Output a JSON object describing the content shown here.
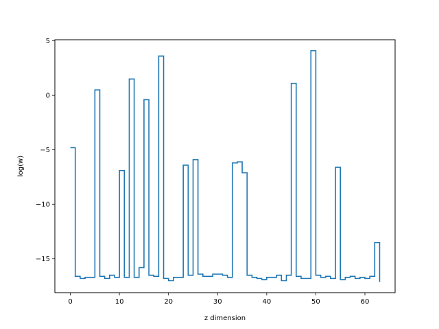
{
  "chart_data": {
    "type": "line",
    "drawstyle": "steps-post",
    "title": "",
    "xlabel": "z dimension",
    "ylabel": "log(w)",
    "xlim": [
      -3.15,
      66.15
    ],
    "ylim": [
      -18.1,
      5.1
    ],
    "xticks": [
      0,
      10,
      20,
      30,
      40,
      50,
      60
    ],
    "yticks": [
      5,
      0,
      -5,
      -10,
      -15
    ],
    "grid": false,
    "line_color": "#1f77b4",
    "series": [
      {
        "name": "",
        "x": [
          0,
          1,
          2,
          3,
          4,
          5,
          6,
          7,
          8,
          9,
          10,
          11,
          12,
          13,
          14,
          15,
          16,
          17,
          18,
          19,
          20,
          21,
          22,
          23,
          24,
          25,
          26,
          27,
          28,
          29,
          30,
          31,
          32,
          33,
          34,
          35,
          36,
          37,
          38,
          39,
          40,
          41,
          42,
          43,
          44,
          45,
          46,
          47,
          48,
          49,
          50,
          51,
          52,
          53,
          54,
          55,
          56,
          57,
          58,
          59,
          60,
          61,
          62,
          63
        ],
        "values": [
          -4.8,
          -16.6,
          -16.8,
          -16.7,
          -16.7,
          0.5,
          -16.6,
          -16.8,
          -16.5,
          -16.7,
          -6.9,
          -16.7,
          1.5,
          -16.7,
          -15.8,
          -0.4,
          -16.5,
          -16.6,
          3.6,
          -16.8,
          -17.0,
          -16.7,
          -16.7,
          -6.4,
          -16.5,
          -5.9,
          -16.4,
          -16.6,
          -16.6,
          -16.4,
          -16.4,
          -16.5,
          -16.7,
          -6.2,
          -6.1,
          -7.1,
          -16.5,
          -16.7,
          -16.8,
          -16.9,
          -16.7,
          -16.7,
          -16.5,
          -17.0,
          -16.5,
          1.1,
          -16.6,
          -16.8,
          -16.8,
          4.1,
          -16.5,
          -16.7,
          -16.6,
          -16.8,
          -6.6,
          -16.9,
          -16.7,
          -16.6,
          -16.8,
          -16.7,
          -16.8,
          -16.6,
          -13.5,
          -17.1
        ]
      }
    ]
  }
}
